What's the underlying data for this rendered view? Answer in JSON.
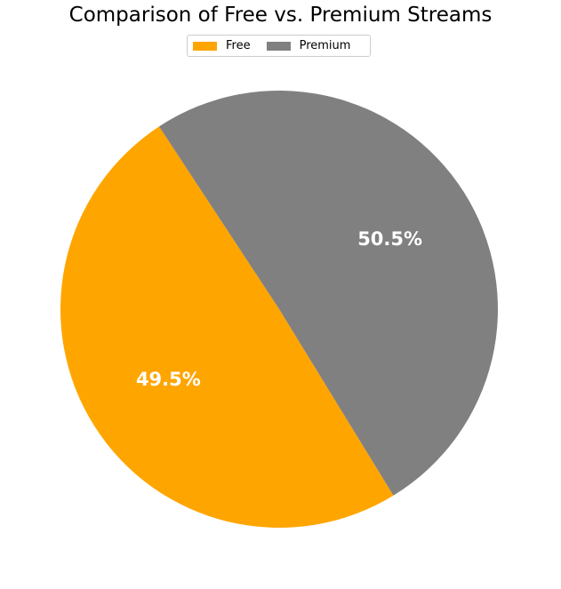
{
  "chart_data": {
    "type": "pie",
    "title": "Comparison of Free vs. Premium Streams",
    "categories": [
      "Free",
      "Premium"
    ],
    "values": [
      49.5,
      50.5
    ],
    "labels": [
      "49.5%",
      "50.5%"
    ],
    "colors": [
      "#FFA500",
      "#808080"
    ],
    "legend_placement": "upper-center"
  }
}
